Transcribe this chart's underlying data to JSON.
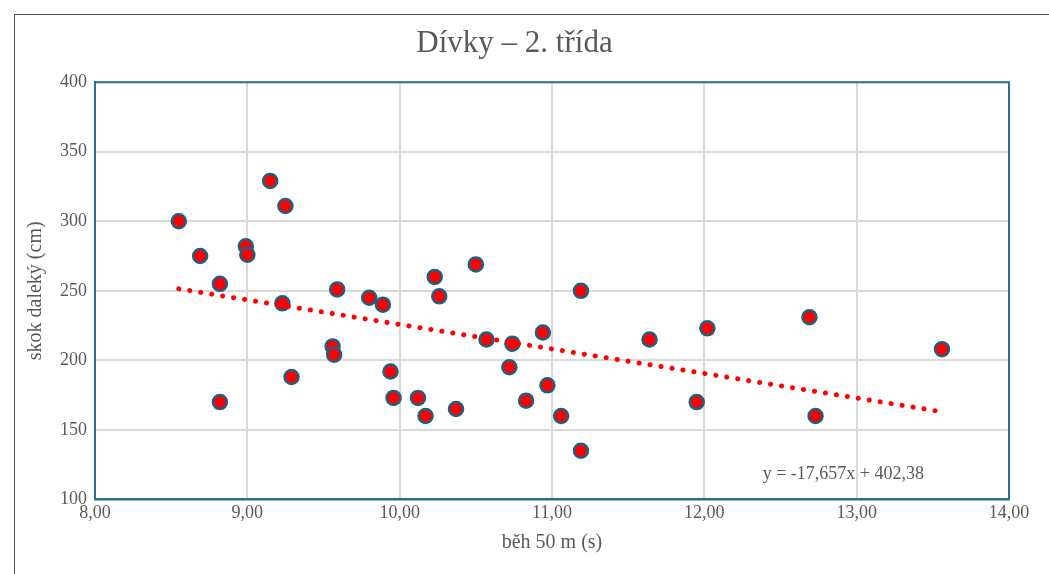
{
  "chart_data": {
    "type": "scatter",
    "title": "Dívky – 2. třída",
    "xlabel": "běh 50 m (s)",
    "ylabel": "skok daleký (cm)",
    "xlim": [
      8,
      14
    ],
    "xticks": [
      {
        "value": 8,
        "label": "8,00"
      },
      {
        "value": 9,
        "label": "9,00"
      },
      {
        "value": 10,
        "label": "10,00"
      },
      {
        "value": 11,
        "label": "11,00"
      },
      {
        "value": 12,
        "label": "12,00"
      },
      {
        "value": 13,
        "label": "13,00"
      },
      {
        "value": 14,
        "label": "14,00"
      }
    ],
    "ylim": [
      100,
      400
    ],
    "yticks": [
      100,
      150,
      200,
      250,
      300,
      350,
      400
    ],
    "grid": true,
    "marker": "circle",
    "series": [
      {
        "color": "#ff0000",
        "x": [
          8.55,
          8.69,
          8.82,
          8.82,
          8.99,
          9.0,
          9.15,
          9.25,
          9.23,
          9.29,
          9.56,
          9.57,
          9.59,
          9.8,
          9.89,
          9.94,
          9.96,
          10.12,
          10.17,
          10.23,
          10.26,
          10.37,
          10.5,
          10.57,
          10.72,
          10.74,
          10.83,
          10.94,
          10.97,
          11.06,
          11.19,
          11.19,
          11.64,
          11.95,
          12.02,
          12.69,
          12.73,
          13.56
        ],
        "values": [
          300,
          275,
          255,
          170,
          282,
          276,
          329,
          311,
          241,
          188,
          210,
          204,
          251,
          245,
          240,
          192,
          173,
          173,
          160,
          260,
          246,
          165,
          269,
          215,
          195,
          212,
          171,
          220,
          182,
          160,
          250,
          135,
          215,
          170,
          223,
          231,
          160,
          208
        ]
      },
      {
        "type": "line",
        "color": "#ff0000",
        "line_style": "dotted",
        "marker": "none",
        "x": [
          8.55,
          13.56
        ],
        "values": [
          251.4,
          163.0
        ]
      }
    ],
    "annotations": [
      "y = -17,657x + 402,38"
    ]
  }
}
